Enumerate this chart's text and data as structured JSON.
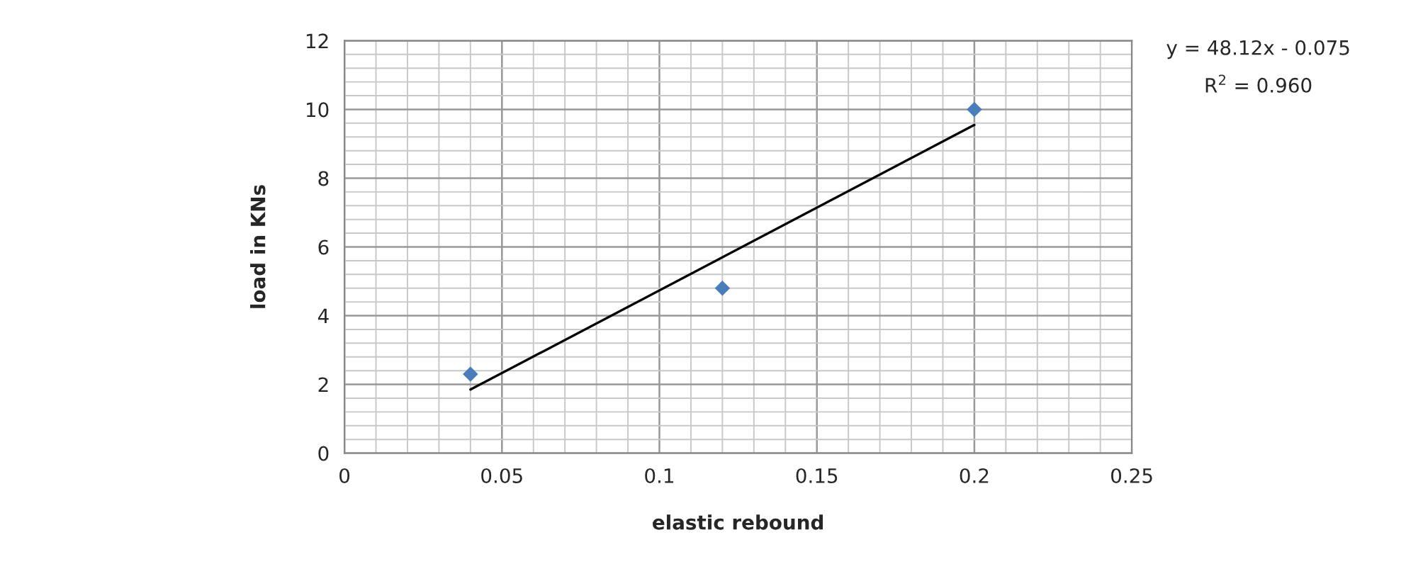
{
  "chart_data": {
    "type": "scatter",
    "xlabel": "elastic rebound",
    "ylabel": "load in KNs",
    "xlim": [
      0,
      0.25
    ],
    "xticks": [
      0,
      0.05,
      0.1,
      0.15,
      0.2,
      0.25
    ],
    "ylim": [
      0,
      12
    ],
    "yticks": [
      0,
      2,
      4,
      6,
      8,
      10,
      12
    ],
    "grid": true,
    "series": [
      {
        "marker": "diamond",
        "color": "#4a7ebb",
        "x": [
          0.04,
          0.12,
          0.2
        ],
        "values": [
          2.3,
          4.8,
          10
        ]
      },
      {
        "type": "line",
        "color": "#000000",
        "x": [
          0.04,
          0.2
        ],
        "values": [
          1.85,
          9.55
        ],
        "line_style": "solid"
      }
    ],
    "annotations": [
      "y = 48.12x - 0.075",
      "R$^{2}$ = 0.960"
    ]
  }
}
